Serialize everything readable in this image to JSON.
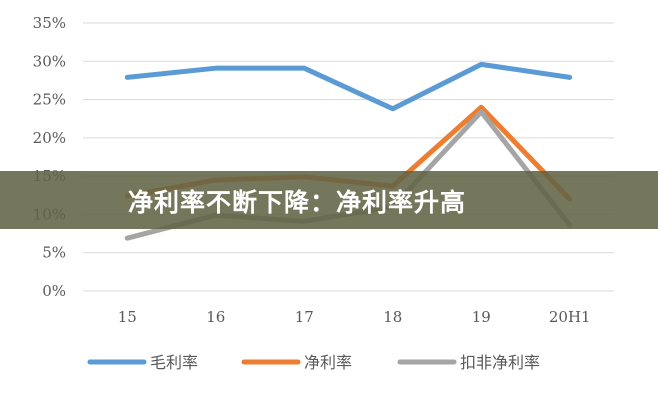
{
  "chart_data": {
    "type": "line",
    "categories": [
      "15",
      "16",
      "17",
      "18",
      "19",
      "20H1"
    ],
    "ylim": [
      0,
      35
    ],
    "yticks": [
      "0%",
      "5%",
      "10%",
      "15%",
      "20%",
      "25%",
      "30%",
      "35%"
    ],
    "grid": true,
    "legend": "bottom",
    "series": [
      {
        "name": "毛利率",
        "color": "#5b9bd5",
        "values": [
          27.9,
          29.1,
          29.1,
          23.8,
          29.6,
          27.9
        ]
      },
      {
        "name": "净利率",
        "color": "#ed7d31",
        "values": [
          12.4,
          14.5,
          14.9,
          13.7,
          24.0,
          12.0
        ]
      },
      {
        "name": "扣非净利率",
        "color": "#a5a5a5",
        "values": [
          6.9,
          9.9,
          9.1,
          11.0,
          23.4,
          8.6
        ]
      }
    ]
  },
  "banner": {
    "text": "净利率不断下降：净利率升高",
    "color": "#62644a"
  }
}
